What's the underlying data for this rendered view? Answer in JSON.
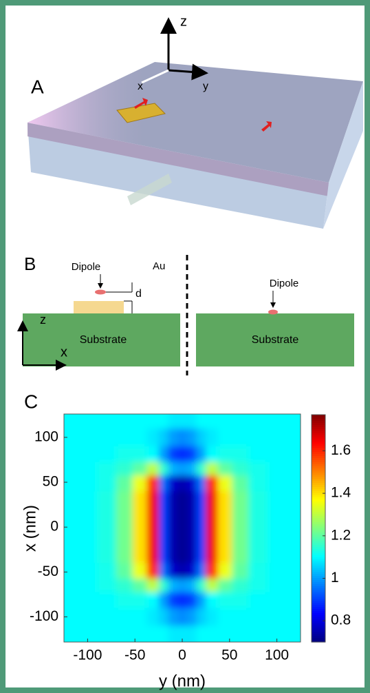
{
  "panels": {
    "a": {
      "label": "A",
      "axes": {
        "z": "z",
        "x": "x",
        "y": "y"
      }
    },
    "b": {
      "label": "B",
      "left": {
        "dipole": "Dipole",
        "metal": "Au",
        "gap": "d",
        "axis_z": "z",
        "axis_x": "x",
        "substrate": "Substrate"
      },
      "right": {
        "dipole": "Dipole",
        "substrate": "Substrate"
      }
    }
  },
  "chart_data": {
    "type": "heatmap",
    "panel_label": "C",
    "xlabel": "y (nm)",
    "ylabel": "x (nm)",
    "x": [
      -120,
      -100,
      -80,
      -60,
      -45,
      -30,
      -20,
      -10,
      0,
      10,
      20,
      30,
      45,
      60,
      80,
      100,
      120
    ],
    "y": [
      120,
      100,
      80,
      65,
      50,
      30,
      10,
      -10,
      -30,
      -50,
      -65,
      -80,
      -100,
      -120
    ],
    "values": [
      [
        1.1,
        1.1,
        1.1,
        1.1,
        1.1,
        1.1,
        1.1,
        1.08,
        1.08,
        1.08,
        1.1,
        1.1,
        1.1,
        1.1,
        1.1,
        1.1,
        1.1
      ],
      [
        1.1,
        1.1,
        1.1,
        1.1,
        1.1,
        1.08,
        1.05,
        1,
        0.98,
        1,
        1.05,
        1.08,
        1.1,
        1.1,
        1.1,
        1.1,
        1.1
      ],
      [
        1.1,
        1.1,
        1.1,
        1.12,
        1.12,
        1.1,
        1,
        0.9,
        0.88,
        0.9,
        1,
        1.1,
        1.12,
        1.12,
        1.1,
        1.1,
        1.1
      ],
      [
        1.1,
        1.1,
        1.12,
        1.15,
        1.2,
        1.3,
        1.15,
        1.02,
        1,
        1.02,
        1.15,
        1.3,
        1.2,
        1.15,
        1.12,
        1.1,
        1.1
      ],
      [
        1.1,
        1.1,
        1.12,
        1.2,
        1.35,
        1.6,
        0.95,
        0.78,
        0.75,
        0.78,
        0.95,
        1.6,
        1.35,
        1.2,
        1.12,
        1.1,
        1.1
      ],
      [
        1.1,
        1.1,
        1.13,
        1.22,
        1.4,
        1.65,
        0.9,
        0.75,
        0.72,
        0.75,
        0.9,
        1.65,
        1.4,
        1.22,
        1.13,
        1.1,
        1.1
      ],
      [
        1.1,
        1.1,
        1.13,
        1.22,
        1.4,
        1.65,
        0.9,
        0.75,
        0.72,
        0.75,
        0.9,
        1.65,
        1.4,
        1.22,
        1.13,
        1.1,
        1.1
      ],
      [
        1.1,
        1.1,
        1.13,
        1.22,
        1.4,
        1.65,
        0.9,
        0.75,
        0.72,
        0.75,
        0.9,
        1.65,
        1.4,
        1.22,
        1.13,
        1.1,
        1.1
      ],
      [
        1.1,
        1.1,
        1.13,
        1.22,
        1.4,
        1.65,
        0.9,
        0.75,
        0.72,
        0.75,
        0.9,
        1.65,
        1.4,
        1.22,
        1.13,
        1.1,
        1.1
      ],
      [
        1.1,
        1.1,
        1.12,
        1.2,
        1.35,
        1.6,
        0.95,
        0.78,
        0.75,
        0.78,
        0.95,
        1.6,
        1.35,
        1.2,
        1.12,
        1.1,
        1.1
      ],
      [
        1.1,
        1.1,
        1.12,
        1.15,
        1.2,
        1.3,
        1.15,
        1.02,
        1,
        1.02,
        1.15,
        1.3,
        1.2,
        1.15,
        1.12,
        1.1,
        1.1
      ],
      [
        1.1,
        1.1,
        1.1,
        1.12,
        1.12,
        1.1,
        1,
        0.9,
        0.88,
        0.9,
        1,
        1.1,
        1.12,
        1.12,
        1.1,
        1.1,
        1.1
      ],
      [
        1.1,
        1.1,
        1.1,
        1.1,
        1.1,
        1.08,
        1.05,
        1,
        0.98,
        1,
        1.05,
        1.08,
        1.1,
        1.1,
        1.1,
        1.1,
        1.1
      ],
      [
        1.1,
        1.1,
        1.1,
        1.1,
        1.1,
        1.1,
        1.1,
        1.08,
        1.08,
        1.08,
        1.1,
        1.1,
        1.1,
        1.1,
        1.1,
        1.1,
        1.1
      ]
    ],
    "xlim": [
      -125,
      125
    ],
    "ylim": [
      -128,
      126
    ],
    "xticks": [
      -100,
      -50,
      0,
      50,
      100
    ],
    "yticks": [
      -100,
      -50,
      0,
      50,
      100
    ],
    "clim": [
      0.7,
      1.77
    ],
    "cticks": [
      0.8,
      1,
      1.2,
      1.4,
      1.6
    ],
    "colormap": "jet"
  }
}
